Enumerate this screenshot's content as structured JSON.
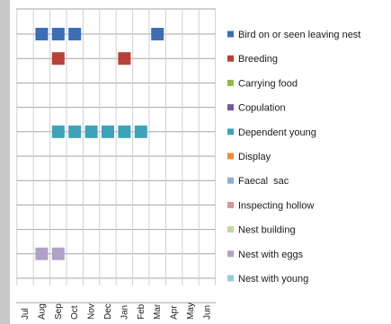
{
  "chart_data": {
    "type": "scatter",
    "title": "",
    "xlabel": "",
    "ylabel": "",
    "months": [
      "Jul",
      "Aug",
      "Sep",
      "Oct",
      "Nov",
      "Dec",
      "Jan",
      "Feb",
      "Mar",
      "Apr",
      "May",
      "Jun"
    ],
    "grid": {
      "horizontal": true,
      "vertical": true
    },
    "legend_position": "right",
    "series": [
      {
        "name": "Bird on or seen leaving nest",
        "color": "#3d6eb3",
        "months": [
          "Aug",
          "Sep",
          "Oct",
          "Mar"
        ]
      },
      {
        "name": "Breeding",
        "color": "#b5413a",
        "months": [
          "Sep",
          "Jan"
        ]
      },
      {
        "name": "Carrying food",
        "color": "#93b84f",
        "months": []
      },
      {
        "name": "Copulation",
        "color": "#7458a0",
        "months": []
      },
      {
        "name": "Dependent young",
        "color": "#3ea3b8",
        "months": [
          "Sep",
          "Oct",
          "Nov",
          "Dec",
          "Jan",
          "Feb"
        ]
      },
      {
        "name": "Display",
        "color": "#ee8c35",
        "months": []
      },
      {
        "name": "Faecal  sac",
        "color": "#93acd6",
        "months": []
      },
      {
        "name": "Inspecting hollow",
        "color": "#d99594",
        "months": []
      },
      {
        "name": "Nest building",
        "color": "#c3d69b",
        "months": []
      },
      {
        "name": "Nest with eggs",
        "color": "#b2a1c7",
        "months": [
          "Aug",
          "Sep"
        ]
      },
      {
        "name": "Nest with young",
        "color": "#92cddc",
        "months": []
      }
    ]
  }
}
